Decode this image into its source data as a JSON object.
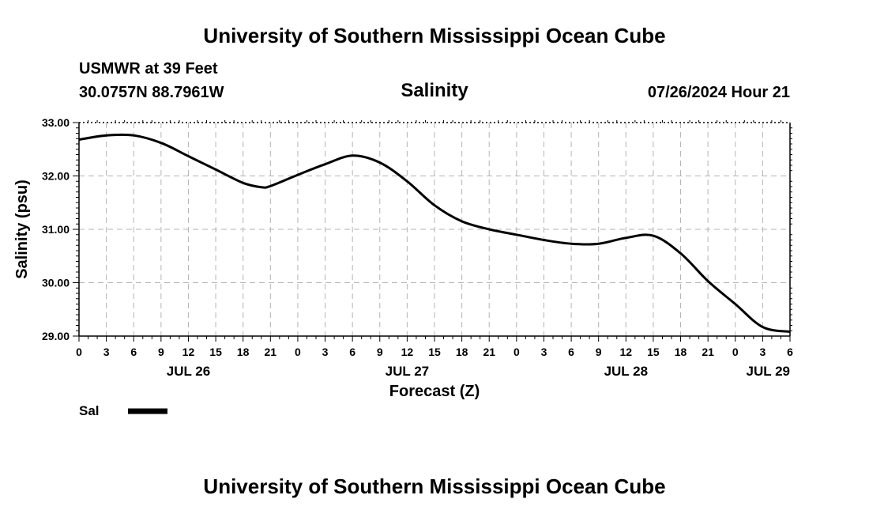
{
  "header": {
    "title": "University of Southern Mississippi Ocean Cube",
    "station": "USMWR at 39 Feet",
    "coords": "30.0757N  88.7961W",
    "datetime": "07/26/2024 Hour 21"
  },
  "footer": {
    "title": "University of Southern Mississippi Ocean Cube"
  },
  "chart_data": {
    "type": "line",
    "title": "Salinity",
    "xlabel": "Forecast (Z)",
    "ylabel": "Salinity (psu)",
    "ylim": [
      29.0,
      33.0
    ],
    "xlim": [
      0,
      78
    ],
    "y_ticks": [
      "29.00",
      "30.00",
      "31.00",
      "32.00",
      "33.00"
    ],
    "x_tick_labels": [
      "0",
      "3",
      "6",
      "9",
      "12",
      "15",
      "18",
      "21",
      "0",
      "3",
      "6",
      "9",
      "12",
      "15",
      "18",
      "21",
      "0",
      "3",
      "6",
      "9",
      "12",
      "15",
      "18",
      "21",
      "0",
      "3",
      "6"
    ],
    "date_labels": [
      {
        "label": "JUL 26",
        "hour": 12
      },
      {
        "label": "JUL 27",
        "hour": 36
      },
      {
        "label": "JUL 28",
        "hour": 60
      },
      {
        "label": "JUL 29",
        "hour": 78
      }
    ],
    "grid": true,
    "legend": "bottom-left",
    "series": [
      {
        "name": "Sal",
        "color": "#000000",
        "hours": [
          0,
          3,
          6,
          9,
          12,
          15,
          18,
          20,
          21,
          24,
          27,
          30,
          33,
          36,
          39,
          42,
          45,
          48,
          51,
          54,
          57,
          60,
          63,
          66,
          69,
          72,
          75,
          78
        ],
        "values": [
          32.68,
          32.76,
          32.76,
          32.62,
          32.37,
          32.12,
          31.87,
          31.79,
          31.81,
          32.02,
          32.22,
          32.38,
          32.25,
          31.9,
          31.45,
          31.15,
          31.0,
          30.9,
          30.8,
          30.73,
          30.73,
          30.84,
          30.88,
          30.55,
          30.03,
          29.6,
          29.17,
          29.08
        ]
      }
    ]
  }
}
